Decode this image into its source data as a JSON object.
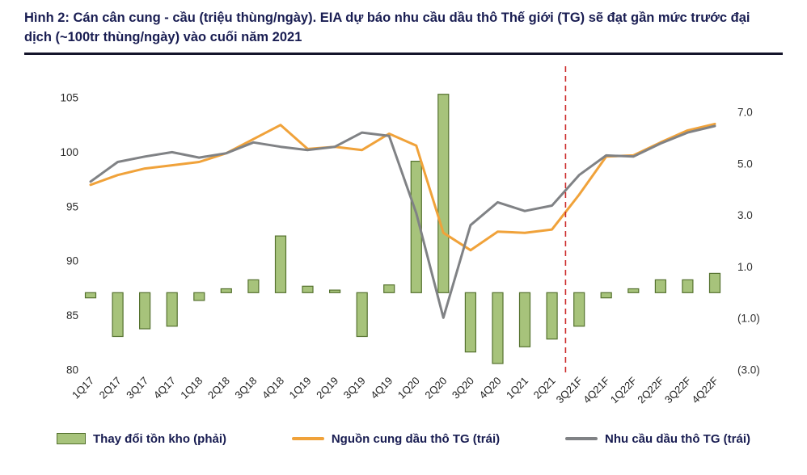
{
  "title": "Hình 2: Cán cân cung - cầu (triệu thùng/ngày). EIA dự báo nhu cầu dầu thô Thế giới (TG) sẽ đạt gần mức trước đại dịch (~100tr thùng/ngày) vào cuối năm 2021",
  "colors": {
    "title_text": "#191d52",
    "title_rule": "#14142a",
    "bar_fill": "#a7c37b",
    "bar_border": "#55722f",
    "supply_line": "#f0a23a",
    "demand_line": "#808285",
    "forecast_divider": "#cc2b2b"
  },
  "chart_data": {
    "type": "combo (bar + line)",
    "grid": false,
    "legend_position": "bottom",
    "categories": [
      "1Q17",
      "2Q17",
      "3Q17",
      "4Q17",
      "1Q18",
      "2Q18",
      "3Q18",
      "4Q18",
      "1Q19",
      "2Q19",
      "3Q19",
      "4Q19",
      "1Q20",
      "2Q20",
      "3Q20",
      "4Q20",
      "1Q21",
      "2Q21",
      "3Q21F",
      "4Q21F",
      "1Q22F",
      "2Q22F",
      "3Q22F",
      "4Q22F"
    ],
    "left_axis": {
      "min": 80,
      "max": 105,
      "ticks": [
        105,
        100,
        95,
        90,
        85,
        80
      ]
    },
    "right_axis": {
      "min": -3,
      "max": 7,
      "ticks": [
        "7.0",
        "5.0",
        "3.0",
        "1.0",
        "(1.0)",
        "(3.0)"
      ],
      "tick_values": [
        7,
        5,
        3,
        1,
        -1,
        -3
      ]
    },
    "series": [
      {
        "name": "Thay đổi tồn kho (phải)",
        "type": "bar",
        "axis": "right",
        "color": "#a7c37b",
        "border_color": "#55722f",
        "values": [
          -0.2,
          -1.7,
          -1.4,
          -1.3,
          -0.3,
          0.15,
          0.5,
          2.2,
          0.25,
          0.1,
          -1.7,
          0.3,
          5.1,
          7.7,
          -2.3,
          -2.75,
          -2.1,
          -1.8,
          -1.3,
          -0.2,
          0.15,
          0.5,
          0.5,
          0.75
        ]
      },
      {
        "name": "Nguồn cung dầu thô TG (trái)",
        "type": "line",
        "axis": "left",
        "color": "#f0a23a",
        "values": [
          97.0,
          97.9,
          98.5,
          98.8,
          99.1,
          99.9,
          101.2,
          102.5,
          100.3,
          100.5,
          100.2,
          101.7,
          100.6,
          92.6,
          91.0,
          92.7,
          92.6,
          92.9,
          96.1,
          99.6,
          99.7,
          100.9,
          102.0,
          102.6
        ]
      },
      {
        "name": "Nhu cầu dầu thô TG (trái)",
        "type": "line",
        "axis": "left",
        "color": "#808285",
        "values": [
          97.3,
          99.1,
          99.6,
          100.0,
          99.5,
          99.9,
          100.9,
          100.5,
          100.2,
          100.5,
          101.8,
          101.5,
          94.4,
          84.8,
          93.3,
          95.4,
          94.6,
          95.1,
          97.9,
          99.7,
          99.6,
          100.8,
          101.8,
          102.4
        ]
      }
    ],
    "forecast_divider": {
      "after_category": "2Q21",
      "color": "#cc2b2b",
      "style": "dashed"
    }
  }
}
